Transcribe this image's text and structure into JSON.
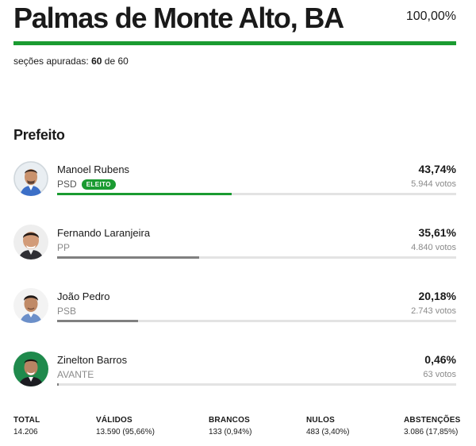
{
  "header": {
    "title": "Palmas de Monte Alto, BA",
    "percent_counted": "100,00%",
    "accent_color": "#1a9b31"
  },
  "sections": {
    "label": "seções apuradas:",
    "counted": "60",
    "connector": "de",
    "total": "60"
  },
  "office": {
    "title": "Prefeito"
  },
  "candidates": [
    {
      "name": "Manoel Rubens",
      "party": "PSD",
      "badge": "ELEITO",
      "percent": "43,74%",
      "votes": "5.944 votos",
      "share": 0.4374,
      "avatar_icon": "candidate-photo"
    },
    {
      "name": "Fernando Laranjeira",
      "party": "PP",
      "percent": "35,61%",
      "votes": "4.840 votos",
      "share": 0.3561,
      "avatar_icon": "candidate-photo"
    },
    {
      "name": "João Pedro",
      "party": "PSB",
      "percent": "20,18%",
      "votes": "2.743 votos",
      "share": 0.2018,
      "avatar_icon": "candidate-photo"
    },
    {
      "name": "Zinelton Barros",
      "party": "AVANTE",
      "percent": "0,46%",
      "votes": "63 votos",
      "share": 0.0046,
      "avatar_icon": "candidate-photo"
    }
  ],
  "totals": [
    {
      "label": "TOTAL",
      "value": "14.206"
    },
    {
      "label": "VÁLIDOS",
      "value": "13.590 (95,66%)"
    },
    {
      "label": "BRANCOS",
      "value": "133 (0,94%)"
    },
    {
      "label": "NULOS",
      "value": "483 (3,40%)"
    },
    {
      "label": "ABSTENÇÕES",
      "value": "3.086 (17,85%)"
    }
  ]
}
